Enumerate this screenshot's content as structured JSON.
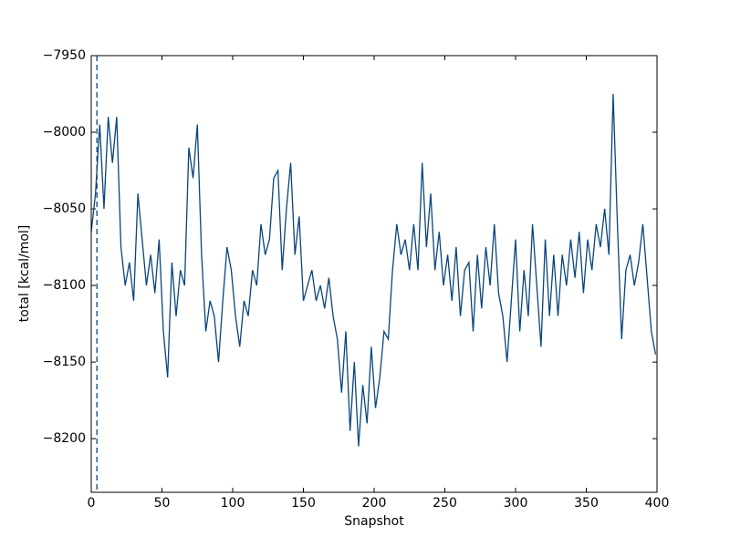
{
  "chart_data": {
    "type": "line",
    "xlabel": "Snapshot",
    "ylabel": "total [kcal/mol]",
    "color": "#08457e",
    "vline": 4,
    "xlim": [
      0,
      400
    ],
    "xticks": [
      0,
      50,
      100,
      150,
      200,
      250,
      300,
      350,
      400
    ],
    "ylim": [
      -8235,
      -7950
    ],
    "yticks": [
      {
        "value": -8200,
        "label": "−8200"
      },
      {
        "value": -8150,
        "label": "−8150"
      },
      {
        "value": -8100,
        "label": "−8100"
      },
      {
        "value": -8050,
        "label": "−8050"
      },
      {
        "value": -8000,
        "label": "−8000"
      },
      {
        "value": -7950,
        "label": "−7950"
      }
    ],
    "x": [
      0,
      3,
      6,
      9,
      12,
      15,
      18,
      21,
      24,
      27,
      30,
      33,
      36,
      39,
      42,
      45,
      48,
      51,
      54,
      57,
      60,
      63,
      66,
      69,
      72,
      75,
      78,
      81,
      84,
      87,
      90,
      93,
      96,
      99,
      102,
      105,
      108,
      111,
      114,
      117,
      120,
      123,
      126,
      129,
      132,
      135,
      138,
      141,
      144,
      147,
      150,
      153,
      156,
      159,
      162,
      165,
      168,
      171,
      174,
      177,
      180,
      183,
      186,
      189,
      192,
      195,
      198,
      201,
      204,
      207,
      210,
      213,
      216,
      219,
      222,
      225,
      228,
      231,
      234,
      237,
      240,
      243,
      246,
      249,
      252,
      255,
      258,
      261,
      264,
      267,
      270,
      273,
      276,
      279,
      282,
      285,
      288,
      291,
      294,
      297,
      300,
      303,
      306,
      309,
      312,
      315,
      318,
      321,
      324,
      327,
      330,
      333,
      336,
      339,
      342,
      345,
      348,
      351,
      354,
      357,
      360,
      363,
      366,
      369,
      372,
      375,
      378,
      381,
      384,
      387,
      390,
      393,
      396,
      399
    ],
    "values": [
      -8065,
      -8040,
      -7995,
      -8050,
      -7990,
      -8020,
      -7990,
      -8075,
      -8100,
      -8085,
      -8110,
      -8040,
      -8070,
      -8100,
      -8080,
      -8105,
      -8070,
      -8130,
      -8160,
      -8085,
      -8120,
      -8090,
      -8100,
      -8010,
      -8030,
      -7995,
      -8080,
      -8130,
      -8110,
      -8120,
      -8150,
      -8110,
      -8075,
      -8090,
      -8120,
      -8140,
      -8110,
      -8120,
      -8090,
      -8100,
      -8060,
      -8080,
      -8070,
      -8030,
      -8025,
      -8090,
      -8050,
      -8020,
      -8080,
      -8055,
      -8110,
      -8100,
      -8090,
      -8110,
      -8100,
      -8115,
      -8095,
      -8120,
      -8135,
      -8170,
      -8130,
      -8195,
      -8150,
      -8205,
      -8165,
      -8190,
      -8140,
      -8180,
      -8160,
      -8130,
      -8135,
      -8090,
      -8060,
      -8080,
      -8070,
      -8090,
      -8060,
      -8090,
      -8020,
      -8075,
      -8040,
      -8090,
      -8065,
      -8100,
      -8080,
      -8110,
      -8075,
      -8120,
      -8090,
      -8085,
      -8130,
      -8080,
      -8115,
      -8075,
      -8100,
      -8060,
      -8105,
      -8120,
      -8150,
      -8110,
      -8070,
      -8130,
      -8090,
      -8120,
      -8060,
      -8100,
      -8140,
      -8070,
      -8120,
      -8080,
      -8120,
      -8080,
      -8100,
      -8070,
      -8095,
      -8065,
      -8105,
      -8070,
      -8090,
      -8060,
      -8075,
      -8050,
      -8080,
      -7975,
      -8060,
      -8135,
      -8090,
      -8080,
      -8100,
      -8085,
      -8060,
      -8095,
      -8130,
      -8145
    ]
  }
}
